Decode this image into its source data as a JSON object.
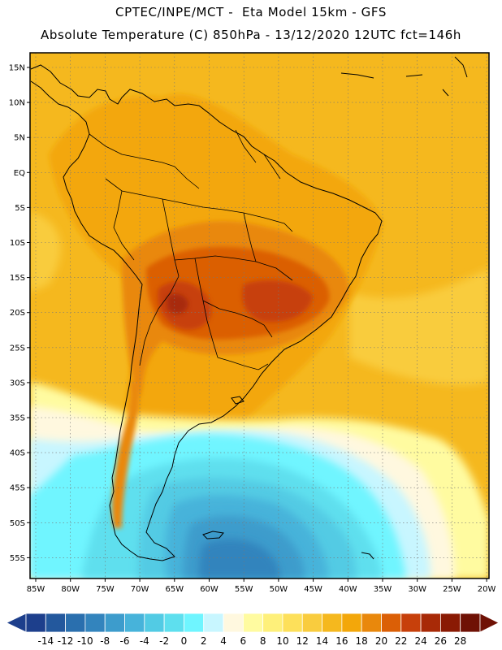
{
  "header": {
    "line1": "CPTEC/INPE/MCT -  Eta Model 15km - GFS",
    "line2": "Absolute Temperature (C) 850hPa - 13/12/2020 12UTC fct=146h"
  },
  "axes": {
    "lat_labels": [
      "15N",
      "10N",
      "5N",
      "EQ",
      "5S",
      "10S",
      "15S",
      "20S",
      "25S",
      "30S",
      "35S",
      "40S",
      "45S",
      "50S",
      "55S"
    ],
    "lon_labels": [
      "85W",
      "80W",
      "75W",
      "70W",
      "65W",
      "60W",
      "55W",
      "50W",
      "45W",
      "40W",
      "35W",
      "30W",
      "25W",
      "20W"
    ]
  },
  "colorbar": {
    "labels": [
      "-14",
      "-12",
      "-10",
      "-8",
      "-6",
      "-4",
      "-2",
      "0",
      "2",
      "4",
      "6",
      "8",
      "10",
      "12",
      "14",
      "16",
      "18",
      "20",
      "22",
      "24",
      "26",
      "28"
    ],
    "colors": [
      "#1d3f8c",
      "#23589d",
      "#2a6fae",
      "#3384bd",
      "#3d9ccc",
      "#47b3da",
      "#52cbe4",
      "#5edfee",
      "#6ff5ff",
      "#c8f6ff",
      "#fff8df",
      "#fffba0",
      "#fef07a",
      "#fde05a",
      "#f9cc3e",
      "#f5b81e",
      "#f3a70a",
      "#e9880c",
      "#db5f06",
      "#c7400b",
      "#a82a07",
      "#8a1a04",
      "#6f1105"
    ]
  },
  "map": {
    "colors": {
      "ocean_warm": "#f5b81e",
      "ocean_light": "#f9cc3e",
      "land_warm": "#f3a70a",
      "hot1": "#e9880c",
      "hot2": "#db5f06",
      "hot3": "#c7400b",
      "hot4": "#a82a07",
      "pale_yellow": "#fffba0",
      "cream": "#fff8df",
      "pale_cyan": "#c8f6ff",
      "cyan": "#6ff5ff",
      "cyan2": "#5edfee",
      "blue1": "#52cbe4",
      "blue2": "#47b3da",
      "blue3": "#3d9ccc",
      "blue4": "#3384bd",
      "coast": "#000000"
    }
  }
}
